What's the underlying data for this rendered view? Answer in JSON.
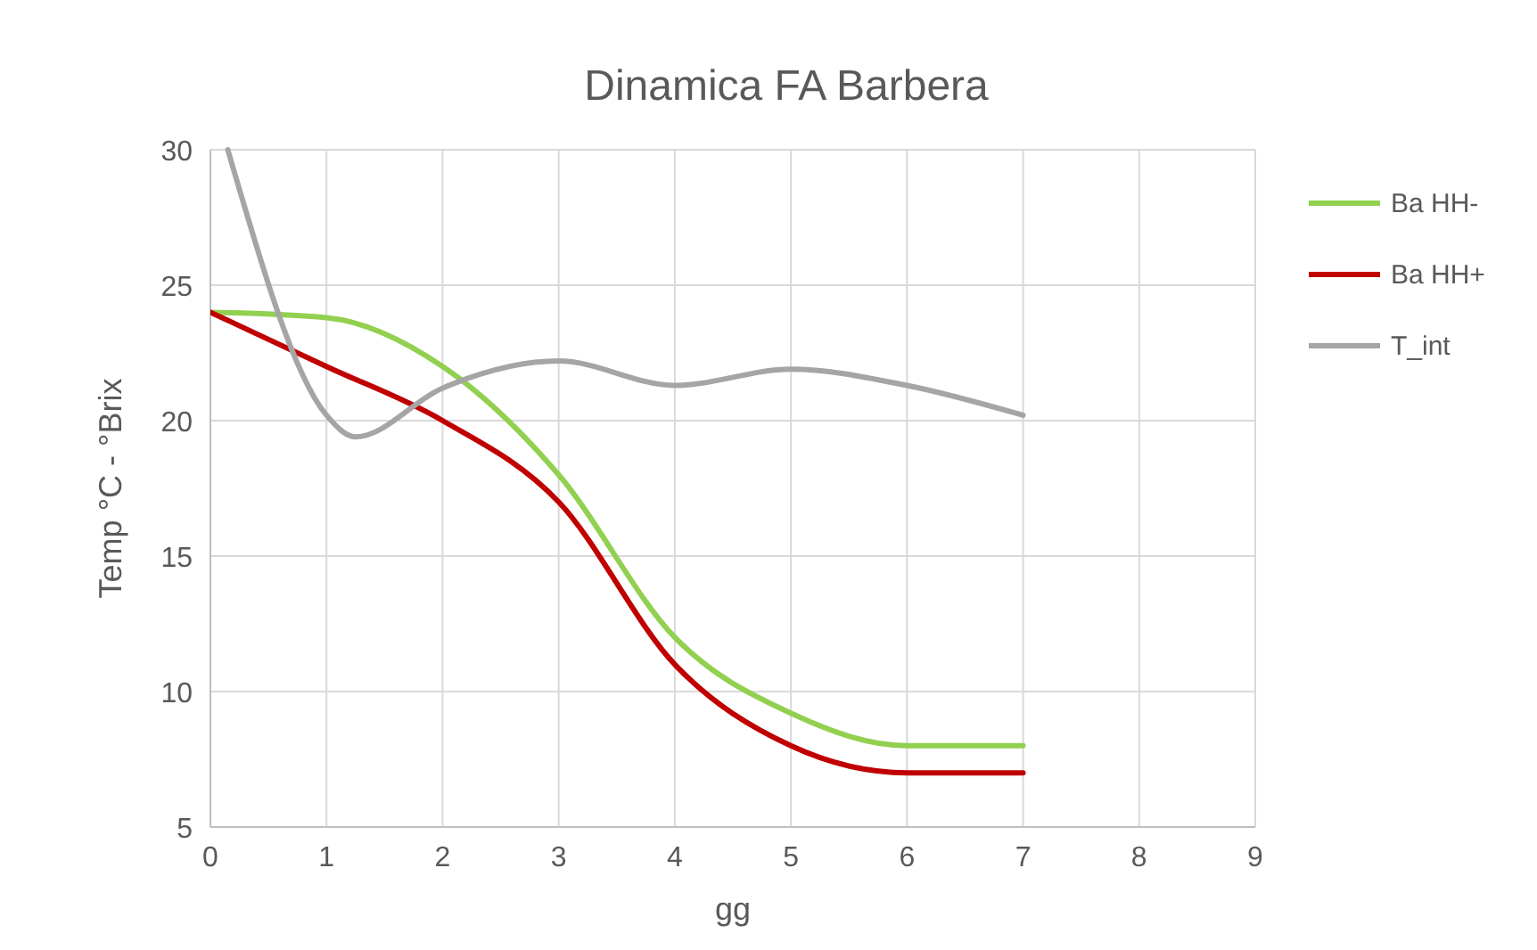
{
  "chart_data": {
    "type": "line",
    "title": "Dinamica FA Barbera",
    "xlabel": "gg",
    "ylabel": "Temp °C - °Brix",
    "xlim": [
      0,
      9
    ],
    "xticks": [
      0,
      1,
      2,
      3,
      4,
      5,
      6,
      7,
      8,
      9
    ],
    "ylim": [
      5,
      30
    ],
    "yticks": [
      5,
      10,
      15,
      20,
      25,
      30
    ],
    "grid": true,
    "legend": "right",
    "marker": "none",
    "line_style": "solid",
    "series": [
      {
        "name": "Ba HH-",
        "color": "#92d050",
        "x": [
          0,
          1,
          2,
          3,
          4,
          5,
          6,
          7
        ],
        "values": [
          24,
          23.8,
          22,
          18,
          12,
          9.2,
          8,
          8
        ]
      },
      {
        "name": "Ba HH+",
        "color": "#c00000",
        "x": [
          0,
          1,
          2,
          3,
          4,
          5,
          6,
          7
        ],
        "values": [
          24,
          22,
          20,
          17,
          11,
          8,
          7,
          7
        ]
      },
      {
        "name": "T_int",
        "color": "#a5a5a5",
        "x": [
          0.15,
          1,
          1.25,
          2,
          3,
          4,
          5,
          6,
          7
        ],
        "values": [
          30,
          20.2,
          19.4,
          21.2,
          22.2,
          21.3,
          21.9,
          21.3,
          20.2
        ]
      }
    ]
  }
}
